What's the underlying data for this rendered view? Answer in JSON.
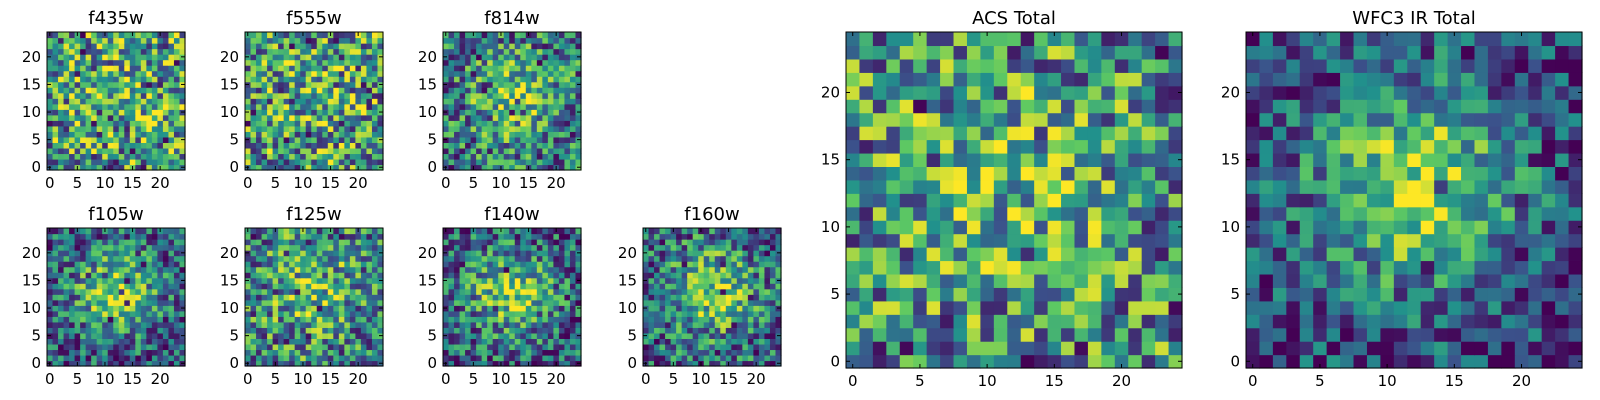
{
  "chart_data": [
    {
      "type": "heatmap",
      "title": "f435w",
      "grid_size": 25,
      "seed": 11,
      "blob": 0.1,
      "xticks": [
        "0",
        "5",
        "10",
        "15",
        "20"
      ],
      "yticks": [
        "0",
        "5",
        "10",
        "15",
        "20"
      ],
      "xlim": [
        -0.5,
        24.5
      ],
      "ylim": [
        -0.5,
        24.5
      ]
    },
    {
      "type": "heatmap",
      "title": "f555w",
      "grid_size": 25,
      "seed": 23,
      "blob": 0.1,
      "xticks": [
        "0",
        "5",
        "10",
        "15",
        "20"
      ],
      "yticks": [
        "0",
        "5",
        "10",
        "15",
        "20"
      ],
      "xlim": [
        -0.5,
        24.5
      ],
      "ylim": [
        -0.5,
        24.5
      ]
    },
    {
      "type": "heatmap",
      "title": "f814w",
      "grid_size": 25,
      "seed": 37,
      "blob": 0.35,
      "xticks": [
        "0",
        "5",
        "10",
        "15",
        "20"
      ],
      "yticks": [
        "0",
        "5",
        "10",
        "15",
        "20"
      ],
      "xlim": [
        -0.5,
        24.5
      ],
      "ylim": [
        -0.5,
        24.5
      ]
    },
    {
      "type": "heatmap",
      "title": "f105w",
      "grid_size": 25,
      "seed": 41,
      "blob": 0.55,
      "xticks": [
        "0",
        "5",
        "10",
        "15",
        "20"
      ],
      "yticks": [
        "0",
        "5",
        "10",
        "15",
        "20"
      ],
      "xlim": [
        -0.5,
        24.5
      ],
      "ylim": [
        -0.5,
        24.5
      ]
    },
    {
      "type": "heatmap",
      "title": "f125w",
      "grid_size": 25,
      "seed": 53,
      "blob": 0.25,
      "xticks": [
        "0",
        "5",
        "10",
        "15",
        "20"
      ],
      "yticks": [
        "0",
        "5",
        "10",
        "15",
        "20"
      ],
      "xlim": [
        -0.5,
        24.5
      ],
      "ylim": [
        -0.5,
        24.5
      ]
    },
    {
      "type": "heatmap",
      "title": "f140w",
      "grid_size": 25,
      "seed": 67,
      "blob": 0.5,
      "xticks": [
        "0",
        "5",
        "10",
        "15",
        "20"
      ],
      "yticks": [
        "0",
        "5",
        "10",
        "15",
        "20"
      ],
      "xlim": [
        -0.5,
        24.5
      ],
      "ylim": [
        -0.5,
        24.5
      ]
    },
    {
      "type": "heatmap",
      "title": "f160w",
      "grid_size": 25,
      "seed": 79,
      "blob": 0.45,
      "xticks": [
        "0",
        "5",
        "10",
        "15",
        "20"
      ],
      "yticks": [
        "0",
        "5",
        "10",
        "15",
        "20"
      ],
      "xlim": [
        -0.5,
        24.5
      ],
      "ylim": [
        -0.5,
        24.5
      ]
    },
    {
      "type": "heatmap",
      "title": "ACS Total",
      "grid_size": 25,
      "seed": 97,
      "blob": 0.2,
      "xticks": [
        "0",
        "5",
        "10",
        "15",
        "20"
      ],
      "yticks": [
        "0",
        "5",
        "10",
        "15",
        "20"
      ],
      "xlim": [
        -0.5,
        24.5
      ],
      "ylim": [
        -0.5,
        24.5
      ]
    },
    {
      "type": "heatmap",
      "title": "WFC3 IR Total",
      "grid_size": 25,
      "seed": 113,
      "blob": 0.7,
      "xticks": [
        "0",
        "5",
        "10",
        "15",
        "20"
      ],
      "yticks": [
        "0",
        "5",
        "10",
        "15",
        "20"
      ],
      "xlim": [
        -0.5,
        24.5
      ],
      "ylim": [
        -0.5,
        24.5
      ]
    }
  ],
  "colormap": [
    "#440154",
    "#3b528b",
    "#21918c",
    "#5ec962",
    "#fde725"
  ]
}
